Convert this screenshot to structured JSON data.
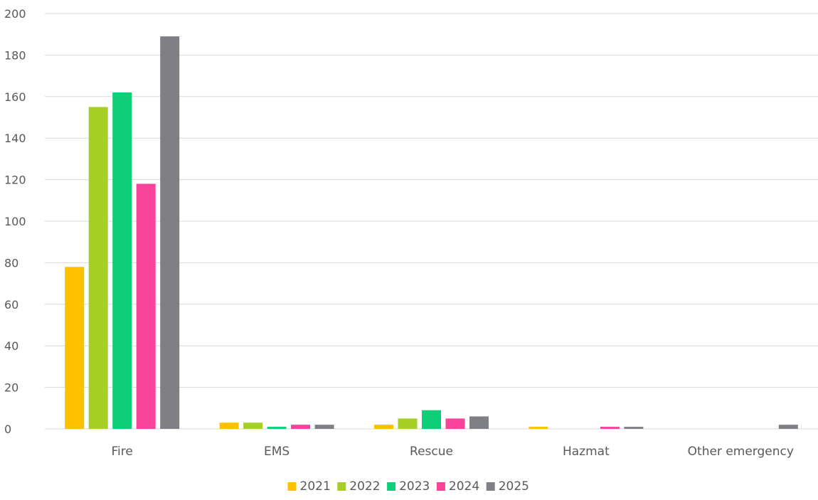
{
  "chart_data": {
    "type": "bar",
    "categories": [
      "Fire",
      "EMS",
      "Rescue",
      "Hazmat",
      "Other emergency"
    ],
    "series": [
      {
        "name": "2021",
        "color": "#FFC000",
        "values": [
          78,
          3,
          2,
          1,
          0
        ]
      },
      {
        "name": "2022",
        "color": "#A5CF24",
        "values": [
          155,
          3,
          5,
          0,
          0
        ]
      },
      {
        "name": "2023",
        "color": "#0ECF78",
        "values": [
          162,
          1,
          9,
          0,
          0
        ]
      },
      {
        "name": "2024",
        "color": "#F7439A",
        "values": [
          118,
          2,
          5,
          1,
          0
        ]
      },
      {
        "name": "2025",
        "color": "#7F7F86",
        "values": [
          189,
          2,
          6,
          1,
          2
        ]
      }
    ],
    "ylim": [
      0,
      200
    ],
    "yticks": [
      "0",
      "20",
      "40",
      "60",
      "80",
      "100",
      "120",
      "140",
      "160",
      "180",
      "200"
    ],
    "grid": true,
    "legend_position": "bottom",
    "title": "",
    "xlabel": "",
    "ylabel": ""
  }
}
